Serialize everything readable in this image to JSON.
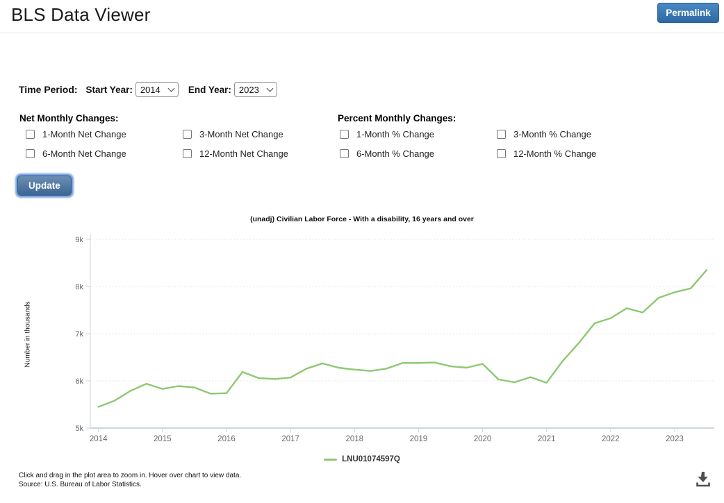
{
  "header": {
    "title": "BLS Data Viewer",
    "permalink_label": "Permalink"
  },
  "controls": {
    "time_period_label": "Time Period:",
    "start_year_label": "Start Year:",
    "start_year_value": "2014",
    "end_year_label": "End Year:",
    "end_year_value": "2023",
    "net_group_label": "Net Monthly Changes:",
    "net_options": [
      "1-Month Net Change",
      "3-Month Net Change",
      "6-Month Net Change",
      "12-Month Net Change"
    ],
    "percent_group_label": "Percent Monthly Changes:",
    "percent_options": [
      "1-Month % Change",
      "3-Month % Change",
      "6-Month % Change",
      "12-Month % Change"
    ],
    "update_label": "Update"
  },
  "chart_data": {
    "type": "line",
    "title": "(unadj) Civilian Labor Force - With a disability, 16 years and over",
    "ylabel": "Number in thousands",
    "ylim": [
      5000,
      9000
    ],
    "yticks": [
      5000,
      6000,
      7000,
      8000,
      9000
    ],
    "ytick_labels": [
      "5k",
      "6k",
      "7k",
      "8k",
      "9k"
    ],
    "x_tick_labels": [
      "2014",
      "2015",
      "2016",
      "2017",
      "2018",
      "2019",
      "2020",
      "2021",
      "2022",
      "2023"
    ],
    "frequency": "quarterly",
    "x_range": "2014 Q1 to 2023 Q3",
    "grid": "dotted horizontal gridlines",
    "legend_position": "bottom",
    "axis_color": "#ccd6dd",
    "grid_color": "#e1e1e1",
    "tick_label_color": "#666666",
    "series": [
      {
        "name": "LNU01074597Q",
        "color": "#8dc871",
        "values": [
          5450,
          5580,
          5790,
          5940,
          5830,
          5890,
          5860,
          5730,
          5740,
          6190,
          6060,
          6040,
          6070,
          6260,
          6370,
          6280,
          6240,
          6210,
          6260,
          6380,
          6380,
          6390,
          6310,
          6280,
          6360,
          6030,
          5970,
          6080,
          5960,
          6420,
          6800,
          7220,
          7330,
          7540,
          7450,
          7760,
          7880,
          7960,
          8350
        ]
      }
    ]
  },
  "footer": {
    "hint": "Click and drag in the plot area to zoom in. Hover over chart to view data.",
    "source": "Source: U.S. Bureau of Labor Statistics."
  },
  "icons": {
    "select_chevron": "chevron-down",
    "download": "download-arrow-into-tray"
  },
  "colors": {
    "accent_blue": "#2e69a3",
    "series_green": "#8dc871"
  }
}
